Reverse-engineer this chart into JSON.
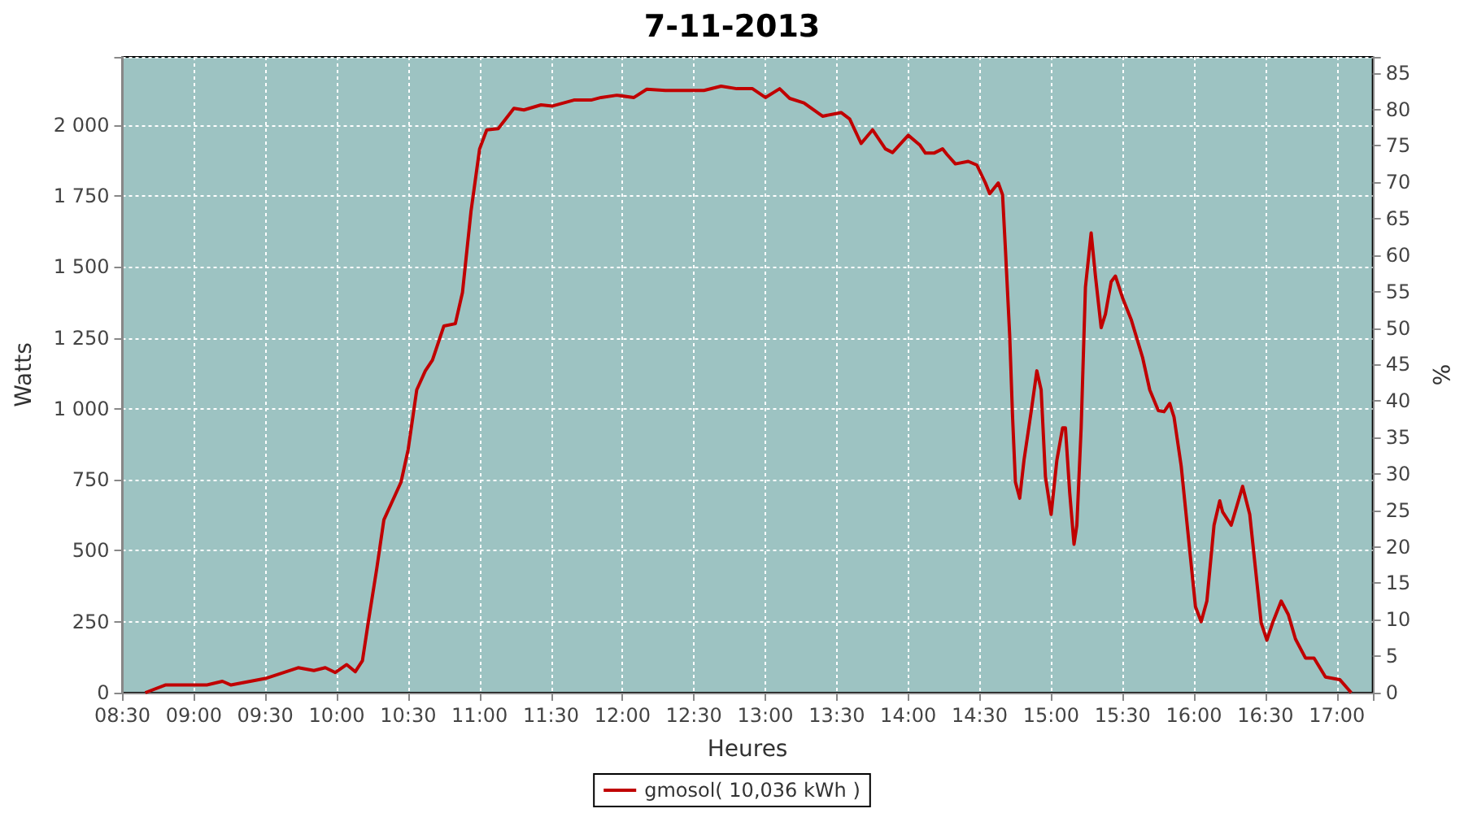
{
  "chart_data": {
    "type": "line",
    "title": "7-11-2013",
    "xlabel": "Heures",
    "ylabel": "Watts",
    "y2label": "%",
    "xlim": [
      8.5,
      17.25
    ],
    "xticks": [
      {
        "value": 8.5,
        "label": "08:30"
      },
      {
        "value": 9,
        "label": "09:00"
      },
      {
        "value": 9.5,
        "label": "09:30"
      },
      {
        "value": 10,
        "label": "10:00"
      },
      {
        "value": 10.5,
        "label": "10:30"
      },
      {
        "value": 11,
        "label": "11:00"
      },
      {
        "value": 11.5,
        "label": "11:30"
      },
      {
        "value": 12,
        "label": "12:00"
      },
      {
        "value": 12.5,
        "label": "12:30"
      },
      {
        "value": 13,
        "label": "13:00"
      },
      {
        "value": 13.5,
        "label": "13:30"
      },
      {
        "value": 14,
        "label": "14:00"
      },
      {
        "value": 14.5,
        "label": "14:30"
      },
      {
        "value": 15,
        "label": "15:00"
      },
      {
        "value": 15.5,
        "label": "15:30"
      },
      {
        "value": 16,
        "label": "16:00"
      },
      {
        "value": 16.5,
        "label": "16:30"
      },
      {
        "value": 17,
        "label": "17:00"
      }
    ],
    "ylim": [
      0,
      2240
    ],
    "yticks": [
      0,
      250,
      500,
      750,
      {
        "value": 1000,
        "label": "1 000"
      },
      {
        "value": 1250,
        "label": "1 250"
      },
      {
        "value": 1500,
        "label": "1 500"
      },
      {
        "value": 1750,
        "label": "1 750"
      },
      {
        "value": 2000,
        "label": "2 000"
      }
    ],
    "y2lim": [
      0,
      87.2
    ],
    "y2ticks": [
      0,
      5,
      10,
      15,
      20,
      25,
      30,
      35,
      40,
      45,
      50,
      55,
      60,
      65,
      70,
      75,
      80,
      85
    ],
    "grid": true,
    "legend": "bottom",
    "marker": "none",
    "line_style": "solid",
    "series": [
      {
        "name": "gmosol( 10,036 kWh )",
        "color": "#c00000",
        "x": [
          8.66,
          8.8,
          9.09,
          9.2,
          9.26,
          9.5,
          9.73,
          9.84,
          9.92,
          9.99,
          10.07,
          10.13,
          10.18,
          10.22,
          10.28,
          10.33,
          10.45,
          10.5,
          10.56,
          10.62,
          10.67,
          10.75,
          10.83,
          10.88,
          10.94,
          11.0,
          11.05,
          11.13,
          11.24,
          11.31,
          11.43,
          11.51,
          11.66,
          11.78,
          11.85,
          11.96,
          12.08,
          12.17,
          12.3,
          12.57,
          12.69,
          12.8,
          12.91,
          13.0,
          13.1,
          13.17,
          13.27,
          13.4,
          13.53,
          13.59,
          13.67,
          13.75,
          13.84,
          13.89,
          14.0,
          14.08,
          14.12,
          14.18,
          14.24,
          14.27,
          14.33,
          14.42,
          14.48,
          14.54,
          14.57,
          14.63,
          14.66,
          14.68,
          14.71,
          14.73,
          14.75,
          14.78,
          14.81,
          14.86,
          14.9,
          14.93,
          14.96,
          15.0,
          15.04,
          15.08,
          15.1,
          15.13,
          15.16,
          15.18,
          15.21,
          15.24,
          15.28,
          15.31,
          15.35,
          15.38,
          15.42,
          15.45,
          15.5,
          15.56,
          15.64,
          15.69,
          15.75,
          15.79,
          15.83,
          15.86,
          15.91,
          15.96,
          16.01,
          16.05,
          16.09,
          16.14,
          16.18,
          16.2,
          16.26,
          16.34,
          16.39,
          16.43,
          16.47,
          16.51,
          16.55,
          16.61,
          16.66,
          16.71,
          16.78,
          16.84,
          16.92,
          17.02,
          17.1
        ],
        "values": [
          0,
          27,
          27,
          40,
          27,
          50,
          88,
          78,
          88,
          71,
          99,
          74,
          113,
          246,
          437,
          609,
          742,
          857,
          1067,
          1134,
          1172,
          1292,
          1300,
          1410,
          1697,
          1916,
          1983,
          1987,
          2059,
          2053,
          2071,
          2067,
          2088,
          2088,
          2097,
          2105,
          2097,
          2126,
          2122,
          2122,
          2137,
          2128,
          2128,
          2097,
          2128,
          2094,
          2078,
          2031,
          2044,
          2021,
          1935,
          1983,
          1916,
          1903,
          1964,
          1930,
          1901,
          1901,
          1916,
          1897,
          1863,
          1872,
          1859,
          1796,
          1758,
          1796,
          1754,
          1563,
          1258,
          971,
          742,
          685,
          819,
          990,
          1134,
          1067,
          761,
          628,
          819,
          933,
          933,
          704,
          523,
          590,
          933,
          1429,
          1620,
          1468,
          1286,
          1334,
          1448,
          1468,
          1391,
          1315,
          1181,
          1067,
          994,
          990,
          1019,
          971,
          799,
          551,
          303,
          250,
          323,
          590,
          676,
          637,
          590,
          727,
          628,
          437,
          246,
          185,
          246,
          323,
          275,
          189,
          122,
          122,
          55,
          46,
          0
        ]
      }
    ]
  }
}
